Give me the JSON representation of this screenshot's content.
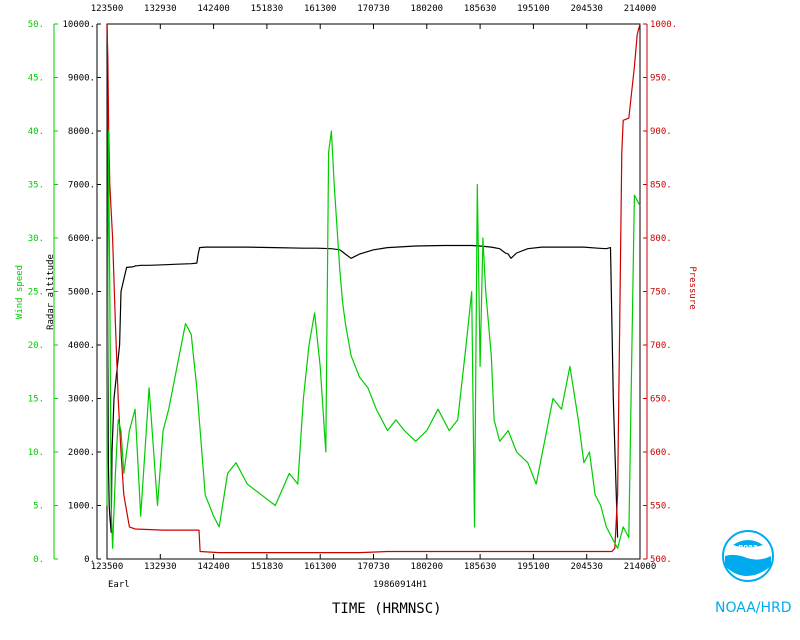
{
  "chart_data": {
    "type": "line",
    "xlabel": "TIME (HRMNSC)",
    "storm_name": "Earl",
    "flight_id": "19860914H1",
    "watermark": "NOAA/HRD",
    "x_ticks": [
      "123500",
      "132930",
      "142400",
      "151830",
      "161300",
      "170730",
      "180200",
      "185630",
      "195100",
      "204530",
      "214000"
    ],
    "axes": {
      "wind": {
        "label": "Wind speed",
        "ylim": [
          0,
          50
        ],
        "ticks": [
          "0.",
          "5.",
          "10.",
          "15.",
          "20.",
          "25.",
          "30.",
          "35.",
          "40.",
          "45.",
          "50."
        ],
        "color": "#00cc00"
      },
      "alt": {
        "label": "Radar altitude",
        "ylim": [
          0,
          10000
        ],
        "ticks": [
          "0.",
          "1000.",
          "2000.",
          "3000.",
          "4000.",
          "5000.",
          "6000.",
          "7000.",
          "8000.",
          "9000.",
          "10000."
        ],
        "color": "#000000"
      },
      "pres": {
        "label": "Pressure",
        "ylim": [
          500,
          1000
        ],
        "ticks": [
          "500.",
          "550.",
          "600.",
          "650.",
          "700.",
          "750.",
          "800.",
          "850.",
          "900.",
          "950.",
          "1000."
        ],
        "color": "#cc0000"
      }
    },
    "series": [
      {
        "name": "Radar altitude",
        "axis": "alt",
        "color": "#000000",
        "x": [
          0,
          0.02,
          0.05,
          0.08,
          0.1,
          0.15,
          0.18,
          0.25,
          0.45,
          0.5,
          0.7,
          0.9,
          0.98,
          1.0,
          1.08,
          1.2,
          1.5,
          2.0,
          2.5,
          3.0,
          3.2,
          3.25,
          3.3,
          3.5,
          4.0,
          4.5,
          5.0,
          6.0,
          7.0,
          7.5,
          8.0,
          8.3,
          8.4,
          8.5,
          8.7,
          9.0,
          9.5,
          10.0,
          11.0,
          12.0,
          13.0,
          13.3,
          13.7,
          14.0,
          14.2,
          14.3,
          14.4,
          14.6,
          15.0,
          15.5,
          16.0,
          17.0,
          17.5,
          17.8,
          17.95,
          18.05,
          18.2
        ],
        "y": [
          10000,
          5000,
          1800,
          1000,
          800,
          500,
          2000,
          3000,
          4000,
          5000,
          5450,
          5460,
          5470,
          5480,
          5480,
          5490,
          5490,
          5500,
          5510,
          5520,
          5530,
          5700,
          5820,
          5830,
          5830,
          5830,
          5830,
          5820,
          5810,
          5810,
          5800,
          5780,
          5740,
          5700,
          5620,
          5700,
          5780,
          5820,
          5850,
          5860,
          5860,
          5850,
          5830,
          5800,
          5720,
          5700,
          5620,
          5720,
          5800,
          5830,
          5830,
          5830,
          5810,
          5800,
          5820,
          3000,
          400
        ]
      },
      {
        "name": "Pressure",
        "axis": "pres",
        "color": "#cc0000",
        "x": [
          0,
          0.03,
          0.06,
          0.1,
          0.2,
          0.3,
          0.4,
          0.5,
          0.6,
          0.8,
          1.0,
          2.0,
          3.0,
          3.28,
          3.32,
          4.0,
          5.0,
          6.0,
          7.0,
          8.0,
          9.0,
          10.0,
          11.0,
          12.0,
          13.0,
          14.0,
          15.0,
          16.0,
          17.0,
          18.0,
          18.1,
          18.2,
          18.35,
          18.4,
          18.6,
          18.8,
          18.9,
          19.0
        ],
        "y": [
          1000,
          970,
          900,
          850,
          800,
          720,
          650,
          600,
          560,
          530,
          528,
          527,
          527,
          527,
          507,
          506,
          506,
          506,
          506,
          506,
          506,
          507,
          507,
          507,
          507,
          507,
          507,
          507,
          507,
          507,
          510,
          560,
          880,
          910,
          912,
          960,
          990,
          1000
        ]
      },
      {
        "name": "Wind speed",
        "axis": "wind",
        "color": "#00cc00",
        "x": [
          0,
          0.05,
          0.1,
          0.15,
          0.2,
          0.3,
          0.4,
          0.5,
          0.6,
          0.8,
          1.0,
          1.2,
          1.5,
          1.8,
          2.0,
          2.2,
          2.5,
          2.8,
          3.0,
          3.2,
          3.5,
          3.8,
          4.0,
          4.3,
          4.6,
          5.0,
          5.5,
          6.0,
          6.5,
          6.8,
          7.0,
          7.2,
          7.4,
          7.6,
          7.8,
          7.9,
          8.0,
          8.1,
          8.2,
          8.3,
          8.4,
          8.5,
          8.7,
          9.0,
          9.3,
          9.6,
          10.0,
          10.3,
          10.6,
          11.0,
          11.4,
          11.8,
          12.2,
          12.5,
          12.8,
          13.0,
          13.1,
          13.2,
          13.3,
          13.4,
          13.5,
          13.6,
          13.7,
          13.8,
          14.0,
          14.3,
          14.6,
          15.0,
          15.3,
          15.6,
          15.9,
          16.2,
          16.5,
          16.8,
          17.0,
          17.2,
          17.4,
          17.6,
          17.8,
          18.0,
          18.2,
          18.4,
          18.6,
          18.8,
          19.0
        ],
        "y": [
          5,
          40,
          25,
          5,
          1,
          8,
          13,
          12,
          8,
          12,
          14,
          4,
          16,
          5,
          12,
          14,
          18,
          22,
          21,
          16,
          6,
          4,
          3,
          8,
          9,
          7,
          6,
          5,
          8,
          7,
          15,
          20,
          23,
          18,
          10,
          38,
          40,
          35,
          31,
          27,
          24,
          22,
          19,
          17,
          16,
          14,
          12,
          13,
          12,
          11,
          12,
          14,
          12,
          13,
          20,
          25,
          3,
          35,
          18,
          30,
          25,
          22,
          19,
          13,
          11,
          12,
          10,
          9,
          7,
          11,
          15,
          14,
          18,
          13,
          9,
          10,
          6,
          5,
          3,
          2,
          1,
          3,
          2,
          34,
          33
        ]
      }
    ]
  }
}
